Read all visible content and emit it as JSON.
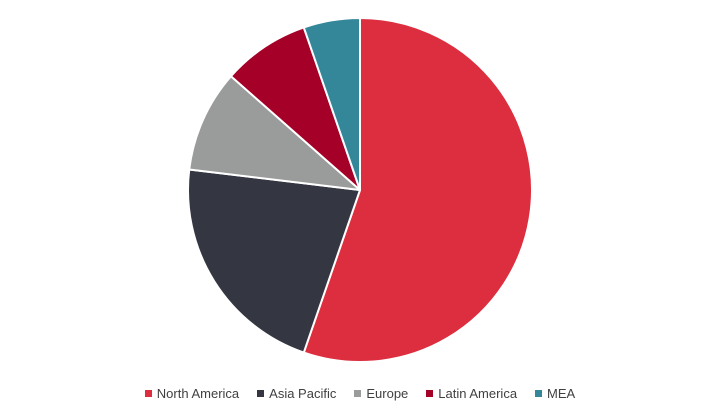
{
  "chart_data": {
    "type": "pie",
    "categories": [
      "North America",
      "Asia Pacific",
      "Europe",
      "Latin America",
      "MEA"
    ],
    "values": [
      55.3,
      21.6,
      9.6,
      8.2,
      5.3
    ],
    "colors": [
      "#dc2e3e",
      "#343642",
      "#9a9c9c",
      "#a50027",
      "#348799"
    ],
    "legend": "bottom"
  }
}
